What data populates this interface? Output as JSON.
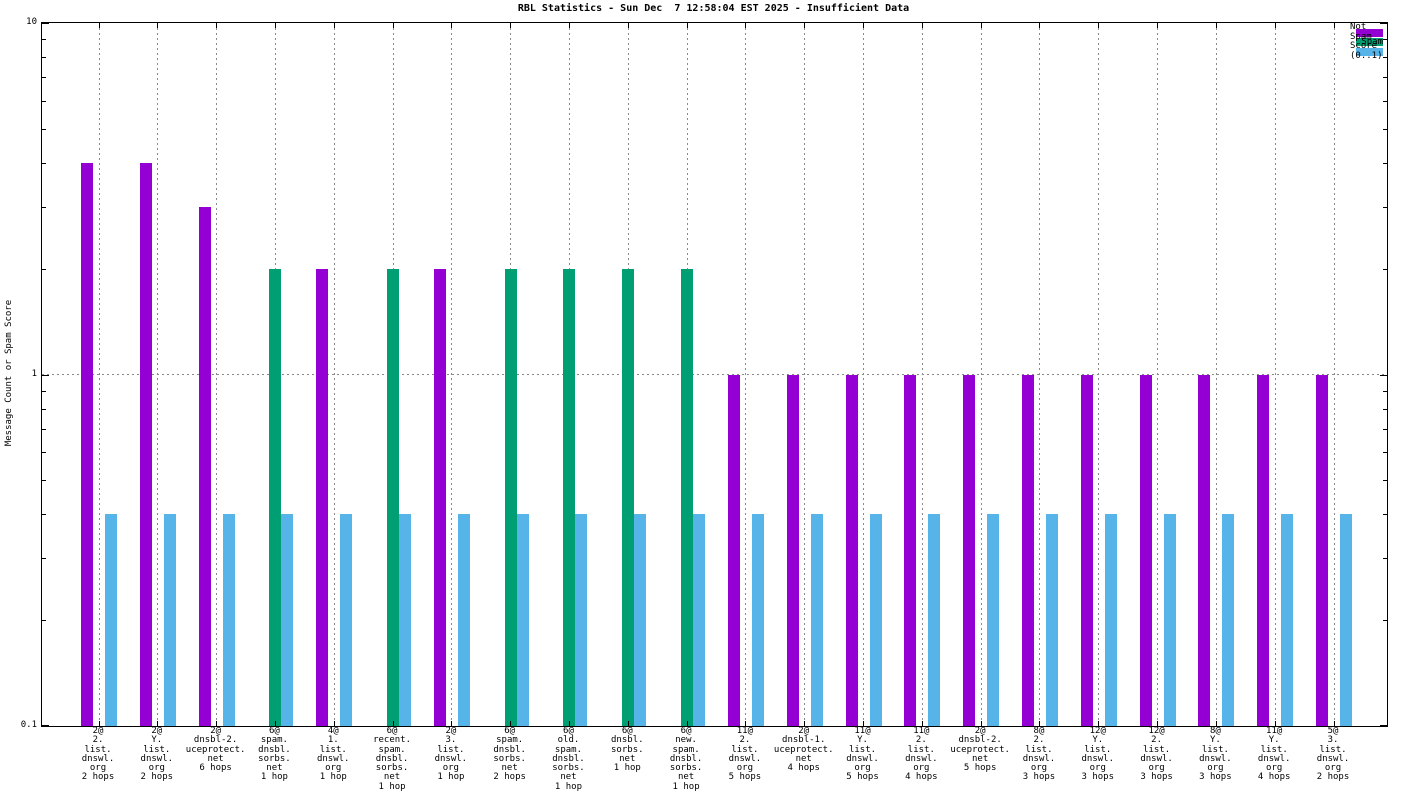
{
  "chart_data": {
    "type": "bar",
    "title": "RBL Statistics - Sun Dec  7 12:58:04 EST 2025 - Insufficient Data",
    "ylabel": "Message Count or Spam Score",
    "yscale": "log",
    "ylim": [
      0.1,
      10
    ],
    "ytick_labels": [
      "0.1",
      "1",
      "10"
    ],
    "grid": true,
    "legend_position": "top-right-inside",
    "legend": [
      {
        "label": "Not Spam",
        "series": "not_spam",
        "color": "#9400D3"
      },
      {
        "label": "Spam",
        "series": "spam",
        "color": "#009E73"
      },
      {
        "label": "Score (0..1)",
        "series": "score",
        "color": "#56B4E9"
      }
    ],
    "colors": {
      "grid": "#8a8a8a",
      "axis": "#000000",
      "background": "#ffffff"
    },
    "groups": [
      {
        "label_lines": [
          "2@",
          "2.",
          "list.",
          "dnswl.",
          "org",
          "2 hops"
        ],
        "not_spam": 4,
        "spam": null,
        "score": 0.4
      },
      {
        "label_lines": [
          "2@",
          "Y.",
          "list.",
          "dnswl.",
          "org",
          "2 hops"
        ],
        "not_spam": 4,
        "spam": null,
        "score": 0.4
      },
      {
        "label_lines": [
          "2@",
          "dnsbl-2.",
          "uceprotect.",
          "net",
          "6 hops"
        ],
        "not_spam": 3,
        "spam": null,
        "score": 0.4
      },
      {
        "label_lines": [
          "6@",
          "spam.",
          "dnsbl.",
          "sorbs.",
          "net",
          "1 hop"
        ],
        "not_spam": null,
        "spam": 2,
        "score": 0.4
      },
      {
        "label_lines": [
          "4@",
          "1.",
          "list.",
          "dnswl.",
          "org",
          "1 hop"
        ],
        "not_spam": 2,
        "spam": null,
        "score": 0.4
      },
      {
        "label_lines": [
          "6@",
          "recent.",
          "spam.",
          "dnsbl.",
          "sorbs.",
          "net",
          "1 hop"
        ],
        "not_spam": null,
        "spam": 2,
        "score": 0.4
      },
      {
        "label_lines": [
          "2@",
          "3.",
          "list.",
          "dnswl.",
          "org",
          "1 hop"
        ],
        "not_spam": 2,
        "spam": null,
        "score": 0.4
      },
      {
        "label_lines": [
          "6@",
          "spam.",
          "dnsbl.",
          "sorbs.",
          "net",
          "2 hops"
        ],
        "not_spam": null,
        "spam": 2,
        "score": 0.4
      },
      {
        "label_lines": [
          "6@",
          "old.",
          "spam.",
          "dnsbl.",
          "sorbs.",
          "net",
          "1 hop"
        ],
        "not_spam": null,
        "spam": 2,
        "score": 0.4
      },
      {
        "label_lines": [
          "6@",
          "dnsbl.",
          "sorbs.",
          "net",
          "1 hop"
        ],
        "not_spam": null,
        "spam": 2,
        "score": 0.4
      },
      {
        "label_lines": [
          "6@",
          "new.",
          "spam.",
          "dnsbl.",
          "sorbs.",
          "net",
          "1 hop"
        ],
        "not_spam": null,
        "spam": 2,
        "score": 0.4
      },
      {
        "label_lines": [
          "11@",
          "2.",
          "list.",
          "dnswl.",
          "org",
          "5 hops"
        ],
        "not_spam": 1,
        "spam": null,
        "score": 0.4
      },
      {
        "label_lines": [
          "2@",
          "dnsbl-1.",
          "uceprotect.",
          "net",
          "4 hops"
        ],
        "not_spam": 1,
        "spam": null,
        "score": 0.4
      },
      {
        "label_lines": [
          "11@",
          "Y.",
          "list.",
          "dnswl.",
          "org",
          "5 hops"
        ],
        "not_spam": 1,
        "spam": null,
        "score": 0.4
      },
      {
        "label_lines": [
          "11@",
          "2.",
          "list.",
          "dnswl.",
          "org",
          "4 hops"
        ],
        "not_spam": 1,
        "spam": null,
        "score": 0.4
      },
      {
        "label_lines": [
          "2@",
          "dnsbl-2.",
          "uceprotect.",
          "net",
          "5 hops"
        ],
        "not_spam": 1,
        "spam": null,
        "score": 0.4
      },
      {
        "label_lines": [
          "8@",
          "2.",
          "list.",
          "dnswl.",
          "org",
          "3 hops"
        ],
        "not_spam": 1,
        "spam": null,
        "score": 0.4
      },
      {
        "label_lines": [
          "12@",
          "Y.",
          "list.",
          "dnswl.",
          "org",
          "3 hops"
        ],
        "not_spam": 1,
        "spam": null,
        "score": 0.4
      },
      {
        "label_lines": [
          "12@",
          "2.",
          "list.",
          "dnswl.",
          "org",
          "3 hops"
        ],
        "not_spam": 1,
        "spam": null,
        "score": 0.4
      },
      {
        "label_lines": [
          "8@",
          "Y.",
          "list.",
          "dnswl.",
          "org",
          "3 hops"
        ],
        "not_spam": 1,
        "spam": null,
        "score": 0.4
      },
      {
        "label_lines": [
          "11@",
          "Y.",
          "list.",
          "dnswl.",
          "org",
          "4 hops"
        ],
        "not_spam": 1,
        "spam": null,
        "score": 0.4
      },
      {
        "label_lines": [
          "5@",
          "3.",
          "list.",
          "dnswl.",
          "org",
          "2 hops"
        ],
        "not_spam": 1,
        "spam": null,
        "score": 0.4
      }
    ]
  }
}
